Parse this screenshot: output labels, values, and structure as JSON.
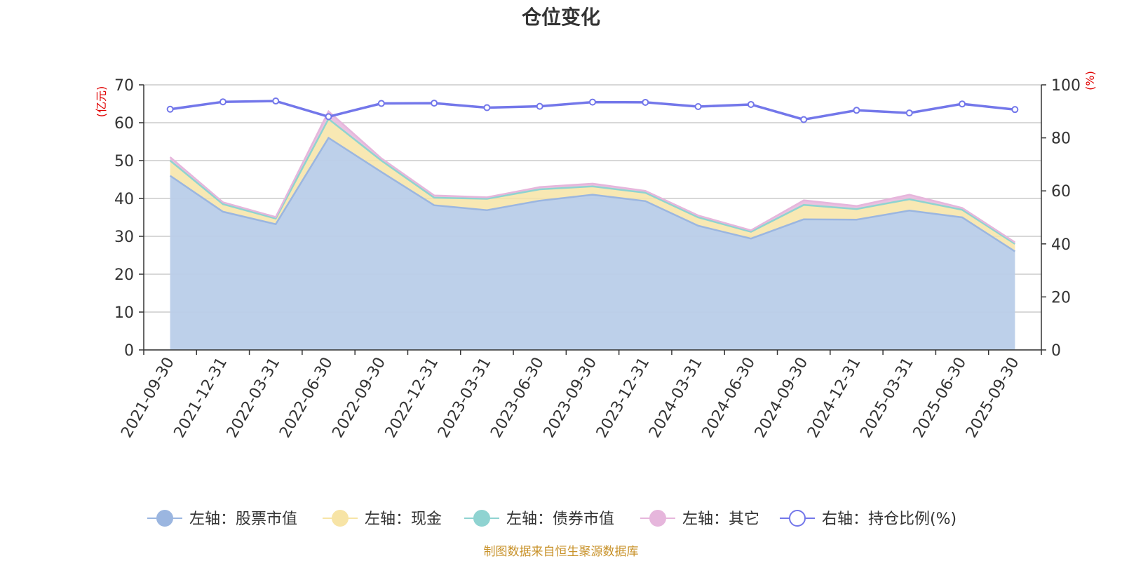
{
  "colors": {
    "stock": "#9bb6e0",
    "stock_fill": "#b9cde9",
    "cash": "#f7e4a6",
    "bond": "#8fd3d1",
    "other": "#e6b6dc",
    "ratio": "#7377ea",
    "unit": "#e00000",
    "source": "#c8922a"
  },
  "source_text": "制图数据来自恒生聚源数据库",
  "chart_data": {
    "type": "area",
    "title": "仓位变化",
    "left_axis": {
      "unit": "(亿元)",
      "ylim": [
        0,
        70
      ],
      "ticks": [
        "0",
        "10",
        "20",
        "30",
        "40",
        "50",
        "60",
        "70"
      ]
    },
    "right_axis": {
      "unit": "(%)",
      "ylim": [
        0,
        100
      ],
      "ticks": [
        "0",
        "20",
        "40",
        "60",
        "80",
        "100"
      ]
    },
    "grid": true,
    "legend_position": "bottom",
    "categories": [
      "2021-09-30",
      "2021-12-31",
      "2022-03-31",
      "2022-06-30",
      "2022-09-30",
      "2022-12-31",
      "2023-03-31",
      "2023-06-30",
      "2023-09-30",
      "2023-12-31",
      "2024-03-31",
      "2024-06-30",
      "2024-09-30",
      "2024-12-31",
      "2025-03-31",
      "2025-06-30",
      "2025-09-30"
    ],
    "series": [
      {
        "name": "左轴：股票市值",
        "axis": "left",
        "stacked": true,
        "values": [
          46.0,
          36.5,
          33.2,
          56.0,
          47.0,
          38.2,
          36.9,
          39.4,
          41.0,
          39.3,
          32.8,
          29.4,
          34.5,
          34.4,
          36.8,
          35.0,
          26.0
        ]
      },
      {
        "name": "左轴：现金",
        "axis": "left",
        "stacked": true,
        "values": [
          4.0,
          2.0,
          1.5,
          5.0,
          3.0,
          2.0,
          3.0,
          3.0,
          2.2,
          2.2,
          2.2,
          1.8,
          3.8,
          2.8,
          3.0,
          2.0,
          2.0
        ]
      },
      {
        "name": "左轴：债券市值",
        "axis": "left",
        "stacked": true,
        "values": [
          0,
          0,
          0,
          0,
          0,
          0,
          0,
          0,
          0,
          0,
          0,
          0,
          0,
          0,
          0,
          0,
          0
        ]
      },
      {
        "name": "左轴：其它",
        "axis": "left",
        "stacked": true,
        "values": [
          0.9,
          0.5,
          0.4,
          2.0,
          0.6,
          0.6,
          0.4,
          0.6,
          0.7,
          0.5,
          0.5,
          0.4,
          1.2,
          0.8,
          1.2,
          0.5,
          0.4
        ]
      },
      {
        "name": "右轴：持仓比例(%)",
        "axis": "right",
        "values": [
          90.8,
          93.6,
          93.9,
          88.0,
          93.0,
          93.1,
          91.4,
          91.9,
          93.5,
          93.4,
          91.8,
          92.6,
          86.9,
          90.4,
          89.4,
          92.8,
          90.7
        ]
      }
    ]
  }
}
